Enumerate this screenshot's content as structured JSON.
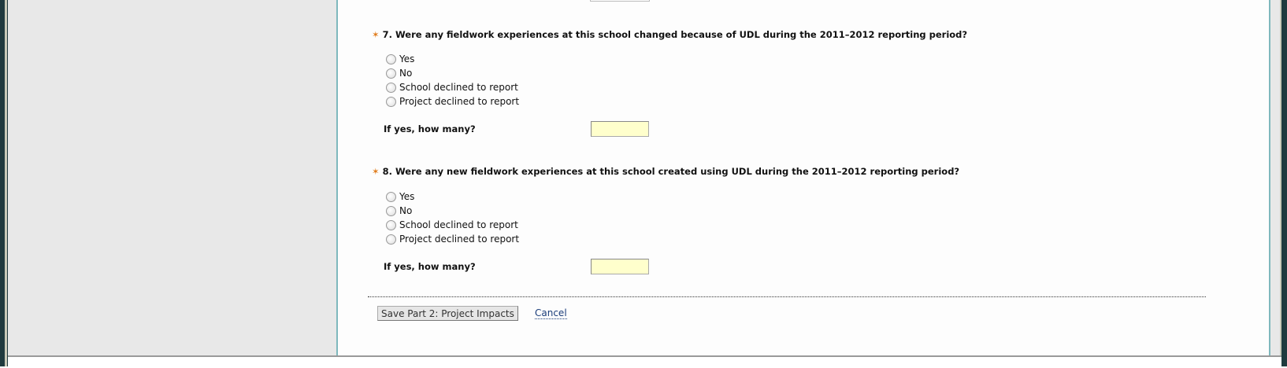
{
  "questions": [
    {
      "star": "✶",
      "text": "7. Were any fieldwork experiences at this school changed because of UDL during the 2011–2012 reporting period?",
      "options": [
        "Yes",
        "No",
        "School declined to report",
        "Project declined to report"
      ],
      "followup": "If yes, how many?",
      "value": ""
    },
    {
      "star": "✶",
      "text": "8. Were any new fieldwork experiences at this school created using UDL during the 2011–2012 reporting period?",
      "options": [
        "Yes",
        "No",
        "School declined to report",
        "Project declined to report"
      ],
      "followup": "If yes, how many?",
      "value": ""
    }
  ],
  "actions": {
    "save_label": "Save Part 2: Project Impacts",
    "cancel_label": "Cancel"
  },
  "colors": {
    "required_star": "#e07b1a",
    "input_bg": "#ffffcc",
    "border_accent": "#7fb8bd"
  }
}
